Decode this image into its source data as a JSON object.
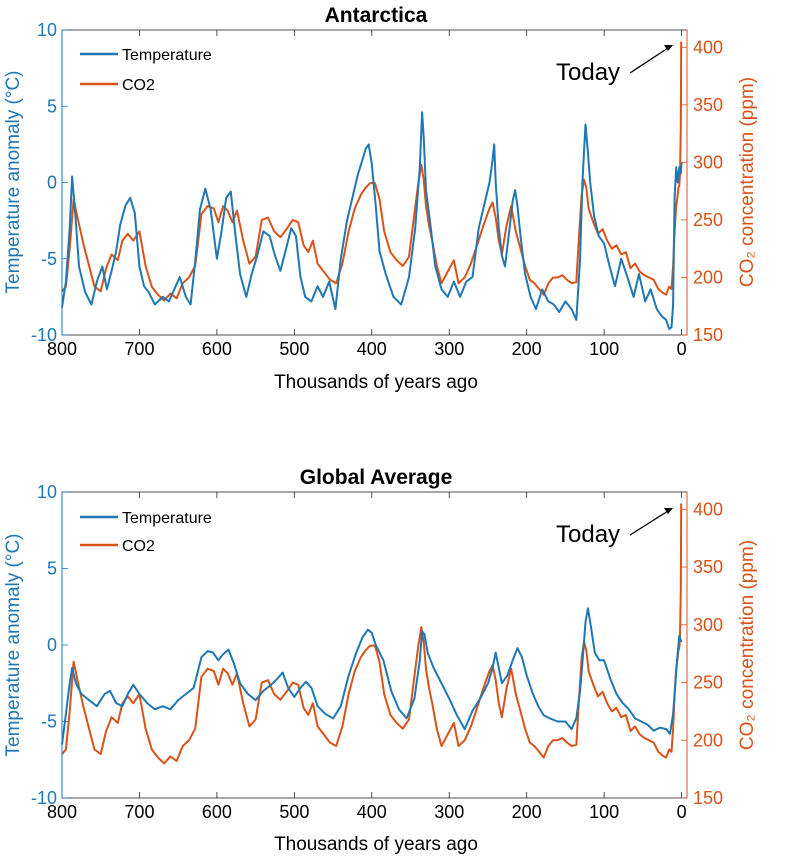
{
  "colors": {
    "temperature": "#1f77b4",
    "co2": "#d95319",
    "text": "#000000"
  },
  "chart_data": [
    {
      "type": "line",
      "title": "Antarctica",
      "xlabel": "Thousands of years ago",
      "ylabel": "Temperature anomaly (°C)",
      "y2label": "CO₂ concentration (ppm)",
      "xlim": [
        800,
        -7
      ],
      "ylim": [
        -10,
        10
      ],
      "y2lim": [
        150,
        415
      ],
      "x_ticks": [
        800,
        700,
        600,
        500,
        400,
        300,
        200,
        100,
        0
      ],
      "y_ticks": [
        -10,
        -5,
        0,
        5,
        10
      ],
      "y2_ticks": [
        150,
        200,
        250,
        300,
        350,
        400
      ],
      "legend": [
        "Temperature",
        "CO2"
      ],
      "legend_location": "top-left",
      "annotation": "Today",
      "series": [
        {
          "name": "Temperature",
          "axis": "left",
          "x": [
            800,
            795,
            790,
            787,
            783,
            778,
            770,
            762,
            755,
            748,
            742,
            736,
            730,
            725,
            718,
            712,
            706,
            700,
            694,
            688,
            680,
            670,
            662,
            655,
            648,
            640,
            634,
            628,
            622,
            615,
            608,
            600,
            594,
            588,
            582,
            576,
            570,
            562,
            555,
            548,
            540,
            532,
            525,
            518,
            510,
            504,
            498,
            492,
            486,
            478,
            470,
            463,
            455,
            447,
            440,
            432,
            425,
            418,
            412,
            408,
            404,
            400,
            395,
            390,
            382,
            372,
            362,
            352,
            344,
            338,
            335,
            333,
            330,
            325,
            318,
            310,
            302,
            294,
            286,
            278,
            270,
            262,
            255,
            248,
            244,
            242,
            240,
            236,
            232,
            228,
            222,
            218,
            215,
            212,
            208,
            202,
            195,
            188,
            180,
            172,
            165,
            158,
            150,
            142,
            136,
            131,
            128,
            126,
            124,
            121,
            118,
            113,
            107,
            100,
            93,
            86,
            78,
            70,
            62,
            55,
            47,
            40,
            32,
            25,
            20,
            16,
            13,
            11,
            10,
            9,
            7,
            5,
            3,
            1,
            0
          ],
          "values": [
            -8.2,
            -6.5,
            -3.0,
            0.4,
            -2.0,
            -5.5,
            -7.2,
            -8.0,
            -6.5,
            -5.5,
            -7.0,
            -5.8,
            -4.5,
            -2.8,
            -1.5,
            -1.0,
            -2.0,
            -5.5,
            -6.8,
            -7.2,
            -8.0,
            -7.5,
            -7.8,
            -7.0,
            -6.2,
            -7.5,
            -8.0,
            -5.2,
            -1.8,
            -0.4,
            -1.8,
            -5.0,
            -3.2,
            -1.0,
            -0.6,
            -3.5,
            -6.0,
            -7.5,
            -6.0,
            -4.8,
            -3.2,
            -3.5,
            -4.8,
            -5.8,
            -4.2,
            -3.0,
            -3.5,
            -6.2,
            -7.5,
            -7.8,
            -6.8,
            -7.5,
            -6.5,
            -8.3,
            -5.0,
            -2.5,
            -1.0,
            0.5,
            1.5,
            2.2,
            2.5,
            1.2,
            -1.5,
            -4.5,
            -6.0,
            -7.5,
            -8.0,
            -6.2,
            -3.0,
            1.0,
            4.6,
            3.0,
            -0.5,
            -2.5,
            -5.5,
            -7.0,
            -7.5,
            -6.5,
            -7.5,
            -6.5,
            -6.2,
            -3.0,
            -1.5,
            0.0,
            1.5,
            2.5,
            0.0,
            -3.0,
            -4.8,
            -5.5,
            -3.0,
            -1.2,
            -0.5,
            -1.5,
            -3.5,
            -6.0,
            -7.5,
            -8.3,
            -7.0,
            -7.8,
            -8.0,
            -8.5,
            -7.8,
            -8.3,
            -9.0,
            -5.0,
            0.0,
            2.0,
            3.8,
            2.0,
            0.0,
            -2.2,
            -3.5,
            -4.0,
            -5.5,
            -6.8,
            -5.0,
            -6.2,
            -7.5,
            -6.0,
            -7.8,
            -7.0,
            -8.3,
            -8.8,
            -9.0,
            -9.6,
            -9.5,
            -8.0,
            -4.5,
            -1.0,
            1.0,
            0.0,
            1.0,
            0.6,
            1.3
          ]
        },
        {
          "name": "CO2",
          "axis": "right",
          "x": [
            800,
            795,
            790,
            785,
            780,
            772,
            765,
            758,
            750,
            743,
            736,
            728,
            722,
            715,
            708,
            700,
            692,
            684,
            676,
            668,
            660,
            652,
            644,
            636,
            628,
            620,
            612,
            604,
            598,
            592,
            586,
            580,
            574,
            566,
            558,
            550,
            542,
            534,
            526,
            518,
            510,
            502,
            495,
            488,
            482,
            476,
            470,
            462,
            454,
            446,
            438,
            430,
            422,
            414,
            408,
            402,
            396,
            390,
            384,
            376,
            368,
            360,
            352,
            346,
            340,
            336,
            333,
            330,
            326,
            322,
            316,
            310,
            302,
            294,
            288,
            280,
            272,
            264,
            256,
            248,
            244,
            240,
            236,
            232,
            226,
            220,
            214,
            208,
            202,
            196,
            190,
            184,
            178,
            172,
            166,
            160,
            154,
            148,
            142,
            136,
            132,
            129,
            126,
            123,
            120,
            114,
            108,
            102,
            96,
            90,
            84,
            78,
            72,
            66,
            60,
            54,
            48,
            42,
            36,
            30,
            25,
            20,
            16,
            13,
            11,
            9,
            7,
            5,
            4,
            3,
            2,
            1,
            0.5
          ],
          "values": [
            188,
            192,
            225,
            268,
            252,
            228,
            210,
            192,
            188,
            208,
            220,
            215,
            232,
            238,
            232,
            240,
            210,
            192,
            185,
            180,
            186,
            182,
            195,
            200,
            210,
            255,
            262,
            260,
            248,
            262,
            258,
            248,
            258,
            232,
            212,
            218,
            250,
            252,
            240,
            235,
            242,
            250,
            248,
            228,
            222,
            232,
            212,
            205,
            198,
            195,
            212,
            240,
            260,
            272,
            278,
            282,
            282,
            268,
            240,
            222,
            215,
            210,
            218,
            250,
            282,
            298,
            285,
            262,
            245,
            232,
            210,
            195,
            205,
            215,
            195,
            200,
            212,
            228,
            245,
            260,
            265,
            252,
            232,
            220,
            245,
            262,
            240,
            225,
            210,
            198,
            195,
            190,
            185,
            195,
            200,
            200,
            202,
            198,
            195,
            196,
            240,
            272,
            285,
            278,
            260,
            248,
            238,
            242,
            232,
            225,
            228,
            220,
            222,
            208,
            212,
            205,
            202,
            200,
            198,
            190,
            187,
            185,
            192,
            190,
            210,
            240,
            262,
            272,
            278,
            280,
            290,
            330,
            405
          ]
        }
      ]
    },
    {
      "type": "line",
      "title": "Global Average",
      "xlabel": "Thousands of years ago",
      "ylabel": "Temperature anomaly (°C)",
      "y2label": "CO₂ concentration (ppm)",
      "xlim": [
        800,
        -7
      ],
      "ylim": [
        -10,
        10
      ],
      "y2lim": [
        150,
        415
      ],
      "x_ticks": [
        800,
        700,
        600,
        500,
        400,
        300,
        200,
        100,
        0
      ],
      "y_ticks": [
        -10,
        -5,
        0,
        5,
        10
      ],
      "y2_ticks": [
        150,
        200,
        250,
        300,
        350,
        400
      ],
      "legend": [
        "Temperature",
        "CO2"
      ],
      "legend_location": "top-left",
      "annotation": "Today",
      "series": [
        {
          "name": "Temperature",
          "axis": "left",
          "x": [
            800,
            795,
            790,
            787,
            782,
            775,
            765,
            755,
            745,
            738,
            730,
            722,
            715,
            708,
            700,
            690,
            680,
            670,
            660,
            650,
            640,
            630,
            620,
            612,
            605,
            598,
            592,
            585,
            578,
            570,
            560,
            550,
            540,
            530,
            522,
            515,
            508,
            500,
            492,
            485,
            478,
            470,
            460,
            450,
            440,
            430,
            420,
            412,
            405,
            400,
            395,
            385,
            375,
            365,
            355,
            345,
            338,
            335,
            332,
            328,
            320,
            310,
            300,
            290,
            280,
            270,
            260,
            250,
            244,
            240,
            236,
            232,
            225,
            218,
            212,
            206,
            200,
            192,
            185,
            178,
            170,
            160,
            150,
            142,
            136,
            131,
            127,
            124,
            121,
            118,
            112,
            106,
            100,
            92,
            84,
            76,
            68,
            60,
            52,
            44,
            36,
            28,
            20,
            15,
            11,
            8,
            5,
            3,
            1,
            0
          ],
          "values": [
            -6.5,
            -4.5,
            -2.5,
            -1.5,
            -2.5,
            -3.2,
            -3.6,
            -4.0,
            -3.2,
            -3.0,
            -3.8,
            -4.0,
            -3.2,
            -2.6,
            -3.2,
            -3.8,
            -4.2,
            -4.0,
            -4.2,
            -3.6,
            -3.2,
            -2.8,
            -0.8,
            -0.4,
            -0.5,
            -1.0,
            -0.6,
            -0.3,
            -1.2,
            -2.5,
            -3.2,
            -3.6,
            -3.0,
            -2.6,
            -2.2,
            -1.8,
            -2.8,
            -3.4,
            -2.8,
            -2.4,
            -2.8,
            -4.0,
            -4.5,
            -4.8,
            -4.0,
            -2.0,
            -0.5,
            0.5,
            1.0,
            0.8,
            0.0,
            -1.0,
            -3.0,
            -4.2,
            -4.8,
            -3.5,
            -1.0,
            0.9,
            0.7,
            -0.5,
            -1.5,
            -2.5,
            -3.5,
            -4.6,
            -5.5,
            -4.3,
            -3.5,
            -2.5,
            -1.5,
            -0.5,
            -1.5,
            -2.5,
            -2.0,
            -1.0,
            -0.2,
            -0.8,
            -2.0,
            -3.2,
            -4.0,
            -4.6,
            -4.8,
            -5.0,
            -5.0,
            -5.5,
            -4.8,
            -3.0,
            -0.5,
            1.5,
            2.4,
            1.5,
            -0.5,
            -1.0,
            -1.0,
            -2.2,
            -3.2,
            -3.8,
            -4.2,
            -4.8,
            -5.0,
            -5.2,
            -5.6,
            -5.4,
            -5.5,
            -5.8,
            -4.5,
            -2.5,
            -0.5,
            0.6,
            0.3,
            0.2
          ]
        },
        {
          "name": "CO2",
          "axis": "right",
          "x": [
            800,
            795,
            790,
            785,
            780,
            772,
            765,
            758,
            750,
            743,
            736,
            728,
            722,
            715,
            708,
            700,
            692,
            684,
            676,
            668,
            660,
            652,
            644,
            636,
            628,
            620,
            612,
            604,
            598,
            592,
            586,
            580,
            574,
            566,
            558,
            550,
            542,
            534,
            526,
            518,
            510,
            502,
            495,
            488,
            482,
            476,
            470,
            462,
            454,
            446,
            438,
            430,
            422,
            414,
            408,
            402,
            396,
            390,
            384,
            376,
            368,
            360,
            352,
            346,
            340,
            336,
            333,
            330,
            326,
            322,
            316,
            310,
            302,
            294,
            288,
            280,
            272,
            264,
            256,
            248,
            244,
            240,
            236,
            232,
            226,
            220,
            214,
            208,
            202,
            196,
            190,
            184,
            178,
            172,
            166,
            160,
            154,
            148,
            142,
            136,
            132,
            129,
            126,
            123,
            120,
            114,
            108,
            102,
            96,
            90,
            84,
            78,
            72,
            66,
            60,
            54,
            48,
            42,
            36,
            30,
            25,
            20,
            16,
            13,
            11,
            9,
            7,
            5,
            4,
            3,
            2,
            1,
            0.5
          ],
          "values": [
            188,
            192,
            225,
            268,
            252,
            228,
            210,
            192,
            188,
            208,
            220,
            215,
            232,
            238,
            232,
            240,
            210,
            192,
            185,
            180,
            186,
            182,
            195,
            200,
            210,
            255,
            262,
            260,
            248,
            262,
            258,
            248,
            258,
            232,
            212,
            218,
            250,
            252,
            240,
            235,
            242,
            250,
            248,
            228,
            222,
            232,
            212,
            205,
            198,
            195,
            212,
            240,
            260,
            272,
            278,
            282,
            282,
            268,
            240,
            222,
            215,
            210,
            218,
            250,
            282,
            298,
            285,
            262,
            245,
            232,
            210,
            195,
            205,
            215,
            195,
            200,
            212,
            228,
            245,
            260,
            265,
            252,
            232,
            220,
            245,
            262,
            240,
            225,
            210,
            198,
            195,
            190,
            185,
            195,
            200,
            200,
            202,
            198,
            195,
            196,
            240,
            272,
            285,
            278,
            260,
            248,
            238,
            242,
            232,
            225,
            228,
            220,
            222,
            208,
            212,
            205,
            202,
            200,
            198,
            190,
            187,
            185,
            192,
            190,
            210,
            240,
            262,
            272,
            278,
            280,
            290,
            330,
            405
          ]
        }
      ]
    }
  ]
}
